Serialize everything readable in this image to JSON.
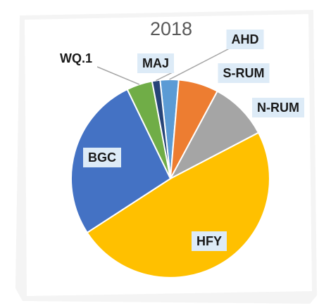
{
  "chart_data": {
    "type": "pie",
    "title": "2018",
    "slices": [
      {
        "label": "AHD",
        "value": 3.0,
        "color": "#5B9BD5",
        "box_fill": "#DDEBF7"
      },
      {
        "label": "S-RUM",
        "value": 6.5,
        "color": "#ED7D31",
        "box_fill": "#DDEBF7"
      },
      {
        "label": "N-RUM",
        "value": 9.5,
        "color": "#A5A5A5",
        "box_fill": "#DDEBF7"
      },
      {
        "label": "HFY",
        "value": 48.5,
        "color": "#FFC000",
        "box_fill": "#DDEBF7"
      },
      {
        "label": "BGC",
        "value": 27.0,
        "color": "#4472C4",
        "box_fill": "#DDEBF7"
      },
      {
        "label": "WQ.1",
        "value": 4.2,
        "color": "#70AD47",
        "box_fill": "#FFFFFF"
      },
      {
        "label": "MAJ",
        "value": 1.3,
        "color": "#264478",
        "box_fill": "#DDEBF7"
      }
    ],
    "legend": "none"
  }
}
